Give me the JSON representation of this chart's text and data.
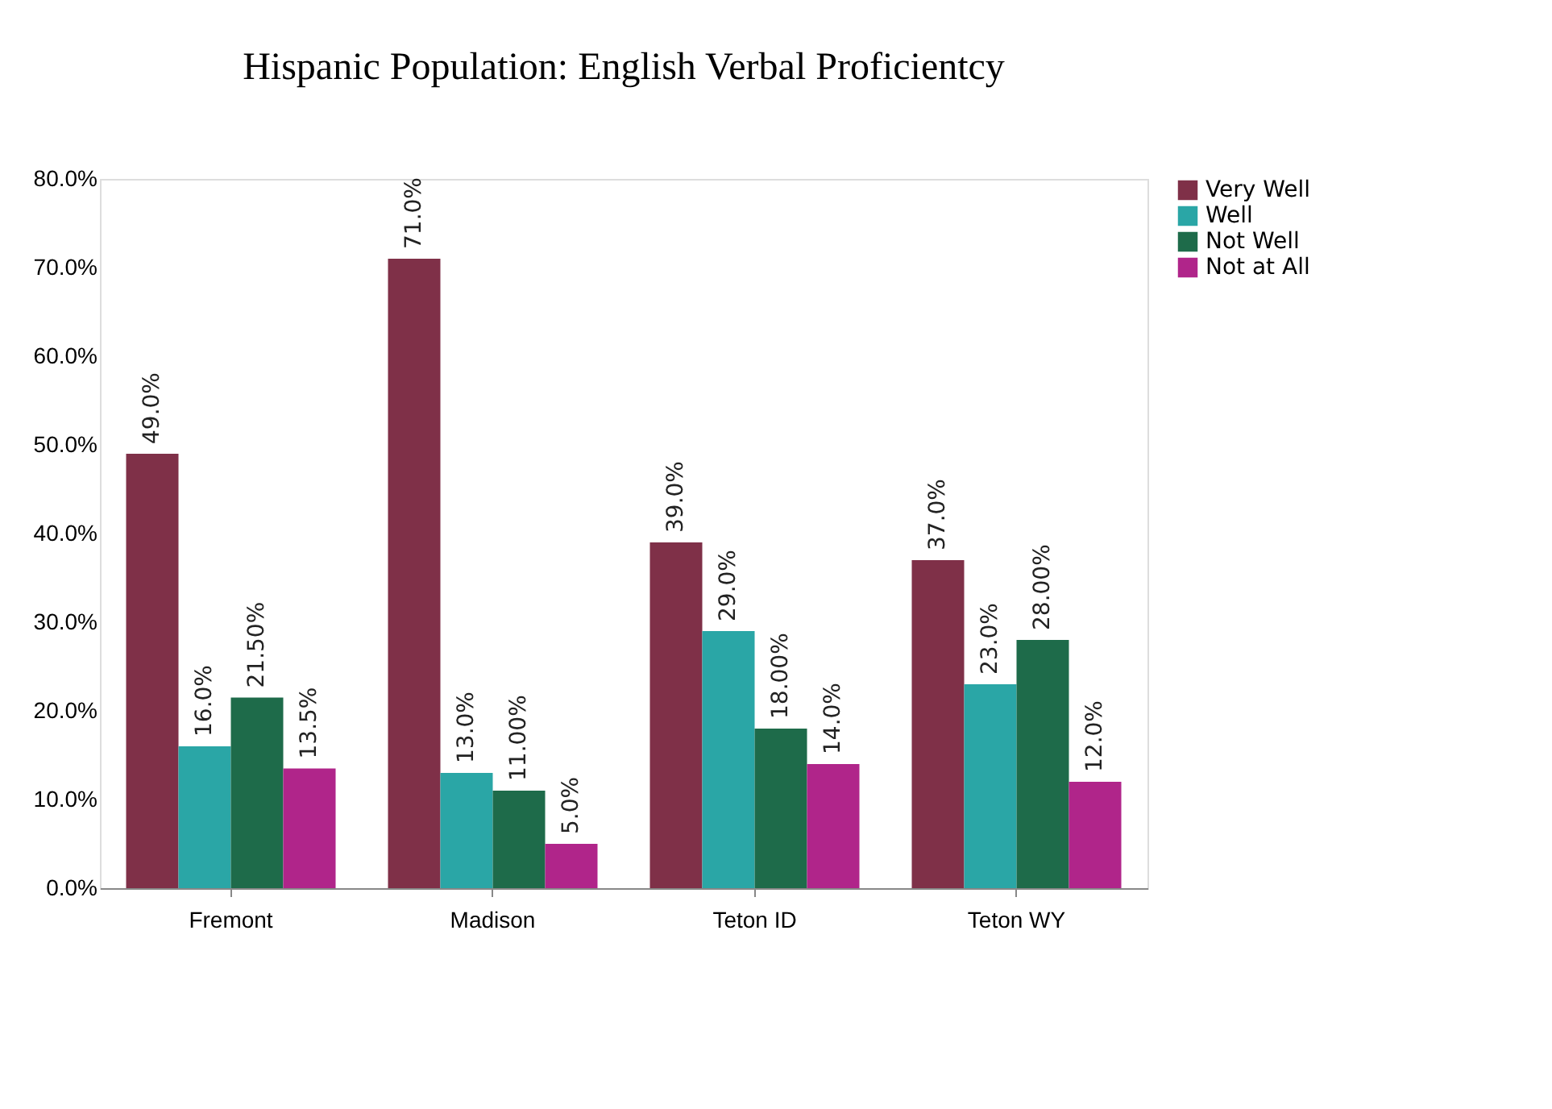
{
  "chart_data": {
    "type": "bar",
    "title": "Hispanic Population:  English Verbal Proficientcy",
    "categories": [
      "Fremont",
      "Madison",
      "Teton ID",
      "Teton WY"
    ],
    "series": [
      {
        "name": "Very Well",
        "color": "#7f3048",
        "values": [
          49.0,
          71.0,
          39.0,
          37.0
        ],
        "value_labels": [
          "49.0%",
          "71.0%",
          "39.0%",
          "37.0%"
        ]
      },
      {
        "name": "Well",
        "color": "#2aa6a6",
        "values": [
          16.0,
          13.0,
          29.0,
          23.0
        ],
        "value_labels": [
          "16.0%",
          "13.0%",
          "29.0%",
          "23.0%"
        ]
      },
      {
        "name": "Not Well",
        "color": "#1e6b4a",
        "values": [
          21.5,
          11.0,
          18.0,
          28.0
        ],
        "value_labels": [
          "21.50%",
          "11.00%",
          "18.00%",
          "28.00%"
        ]
      },
      {
        "name": "Not at All",
        "color": "#b0258a",
        "values": [
          13.5,
          5.0,
          14.0,
          12.0
        ],
        "value_labels": [
          "13.5%",
          "5.0%",
          "14.0%",
          "12.0%"
        ]
      }
    ],
    "ylim": [
      0,
      80
    ],
    "yticks": [
      {
        "value": 0,
        "label": "0.0%"
      },
      {
        "value": 10,
        "label": "10.0%"
      },
      {
        "value": 20,
        "label": "20.0%"
      },
      {
        "value": 30,
        "label": "30.0%"
      },
      {
        "value": 40,
        "label": "40.0%"
      },
      {
        "value": 50,
        "label": "50.0%"
      },
      {
        "value": 60,
        "label": "60.0%"
      },
      {
        "value": 70,
        "label": "70.0%"
      },
      {
        "value": 80,
        "label": "80.0%"
      }
    ],
    "grid": false,
    "legend": "right"
  }
}
